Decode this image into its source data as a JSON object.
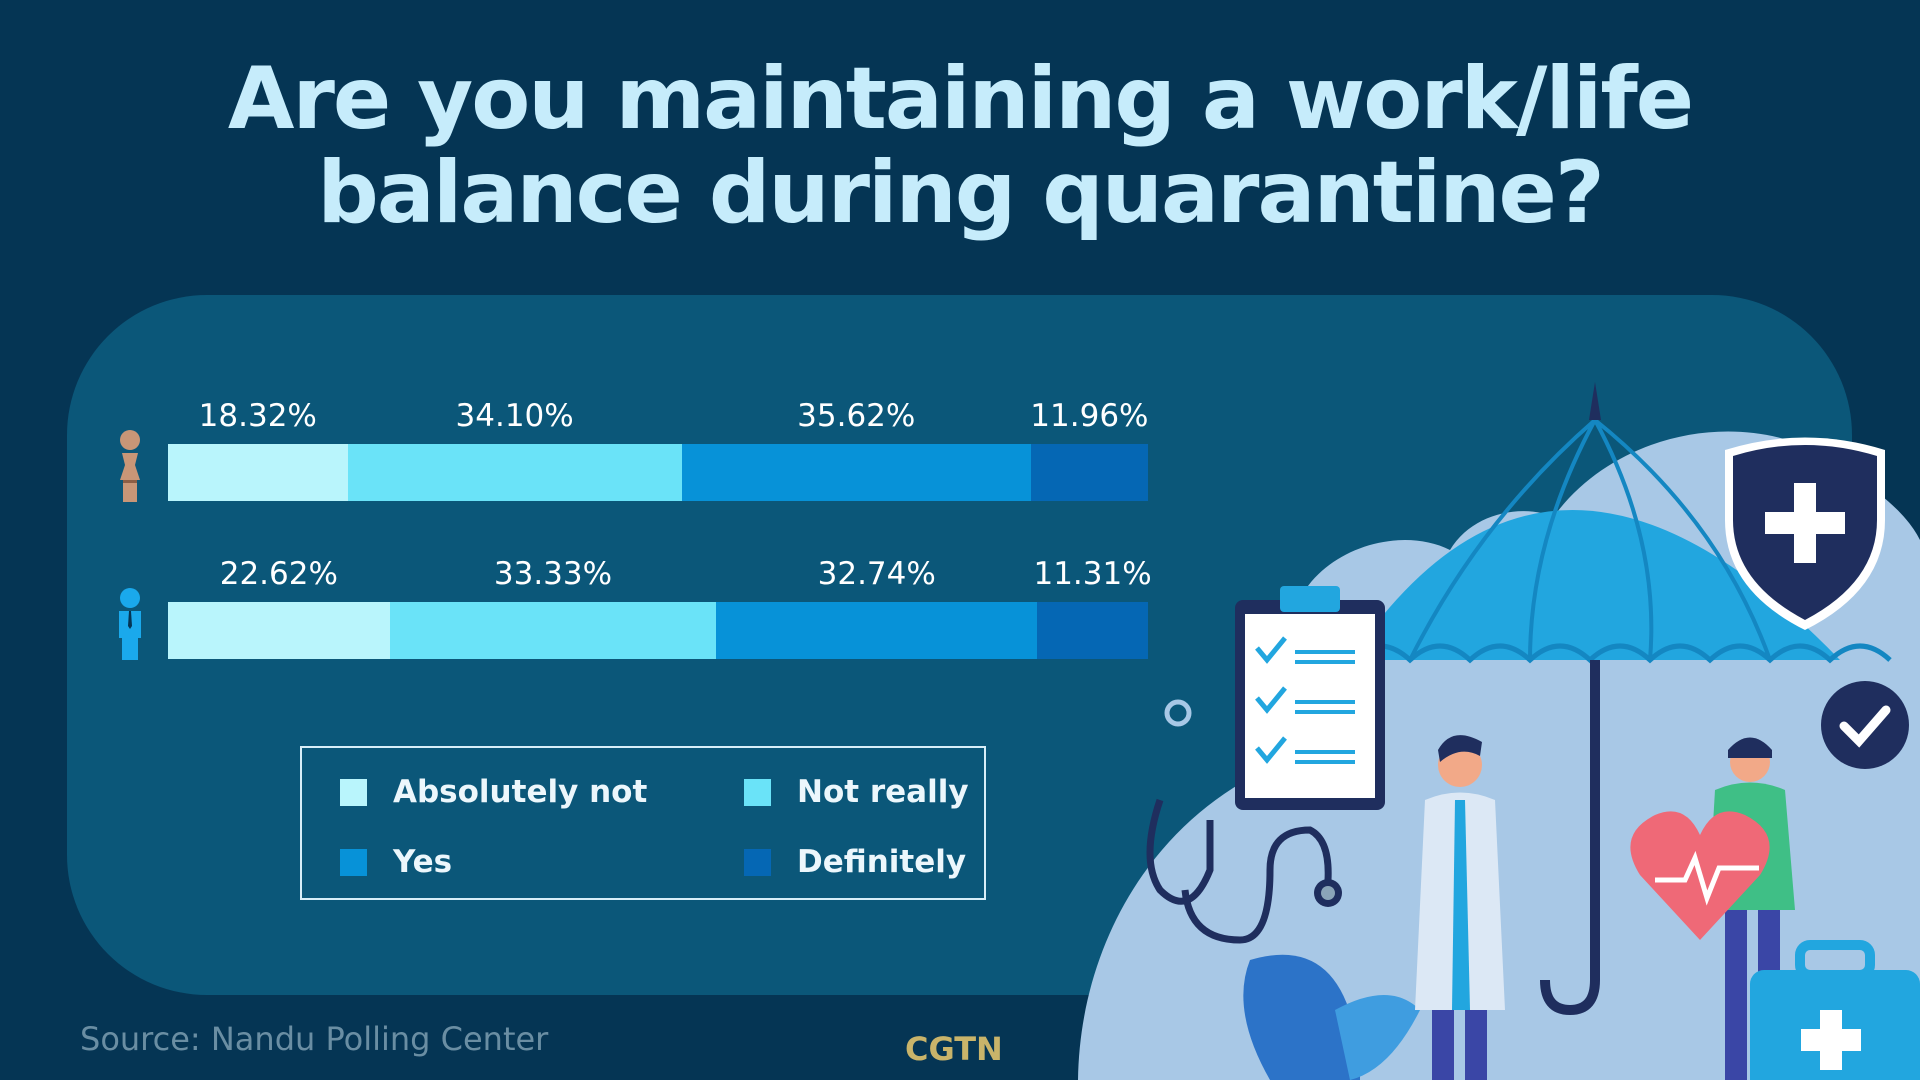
{
  "title_line1": "Are you maintaining a work/life",
  "title_line2": "balance during quarantine?",
  "source": "Source: Nandu Polling Center",
  "brand": "CGTN",
  "chart_data": {
    "type": "bar",
    "stacked": true,
    "orientation": "horizontal",
    "title": "Are you maintaining a work/life balance during quarantine?",
    "categories": [
      "female",
      "male"
    ],
    "category_icons": [
      "female-icon",
      "male-icon"
    ],
    "series": [
      {
        "name": "Absolutely not",
        "values": [
          18.32,
          22.62
        ],
        "color": "#b9f5fc"
      },
      {
        "name": "Not really",
        "values": [
          34.1,
          33.33
        ],
        "color": "#6ae3f8"
      },
      {
        "name": "Yes",
        "values": [
          35.62,
          32.74
        ],
        "color": "#0792d8"
      },
      {
        "name": "Definitely",
        "values": [
          11.96,
          11.31
        ],
        "color": "#0567b4"
      }
    ],
    "value_labels": [
      [
        "18.32%",
        "34.10%",
        "35.62%",
        "11.96%"
      ],
      [
        "22.62%",
        "33.33%",
        "32.74%",
        "11.31%"
      ]
    ],
    "xlim": [
      0,
      100
    ],
    "legend_position": "bottom",
    "grid": false
  },
  "colors": {
    "background": "#053554",
    "panel": "#0b5779",
    "female_icon": "#c89677",
    "male_icon": "#1aa9ec"
  }
}
